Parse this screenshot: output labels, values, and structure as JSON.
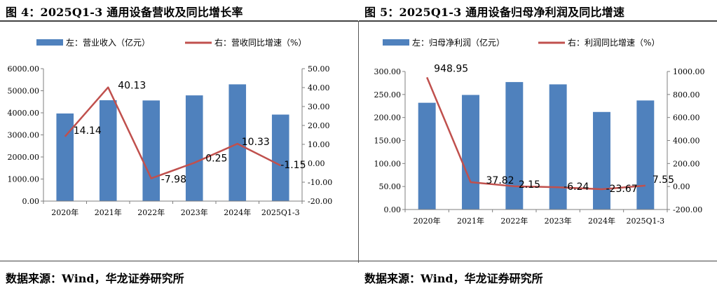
{
  "panels": [
    {
      "title": "图 4：2025Q1-3 通用设备营收及同比增长率",
      "source": "数据来源：Wind，华龙证券研究所",
      "chart_data": {
        "type": "bar+line",
        "categories": [
          "2020年",
          "2021年",
          "2022年",
          "2023年",
          "2024年",
          "2025Q1-3"
        ],
        "series": [
          {
            "name": "左：营业收入（亿元）",
            "type": "bar",
            "axis": "left",
            "color": "#4f81bd",
            "values": [
              3970,
              4570,
              4560,
              4790,
              5290,
              3920
            ]
          },
          {
            "name": "右：营收同比增速（%）",
            "type": "line",
            "axis": "right",
            "color": "#c0504d",
            "values": [
              14.14,
              40.13,
              -7.98,
              0.25,
              10.33,
              -1.15
            ],
            "labels": [
              "14.14",
              "40.13",
              "-7.98",
              "0.25",
              "10.33",
              "-1.15"
            ]
          }
        ],
        "left_axis": {
          "min": 0,
          "max": 6000,
          "step": 1000,
          "ticks": [
            "0.00",
            "1000.00",
            "2000.00",
            "3000.00",
            "4000.00",
            "5000.00",
            "6000.00"
          ]
        },
        "right_axis": {
          "min": -20,
          "max": 50,
          "step": 10,
          "ticks": [
            "-20.00",
            "-10.00",
            "0.00",
            "10.00",
            "20.00",
            "30.00",
            "40.00",
            "50.00"
          ]
        },
        "legend_position": "top"
      }
    },
    {
      "title": "图 5：2025Q1-3 通用设备归母净利润及同比增速",
      "source": "数据来源：Wind，华龙证券研究所",
      "chart_data": {
        "type": "bar+line",
        "categories": [
          "2020年",
          "2021年",
          "2022年",
          "2023年",
          "2024年",
          "2025Q1-3"
        ],
        "series": [
          {
            "name": "左：归母净利润（亿元）",
            "type": "bar",
            "axis": "left",
            "color": "#4f81bd",
            "values": [
              232,
              249,
              277,
              272,
              212,
              237
            ]
          },
          {
            "name": "右：利润同比增速（%）",
            "type": "line",
            "axis": "right",
            "color": "#c0504d",
            "values": [
              948.95,
              37.82,
              2.15,
              -6.24,
              -23.67,
              7.55
            ],
            "labels": [
              "948.95",
              "37.82",
              "2.15",
              "-6.24",
              "-23.67",
              "7.55"
            ]
          }
        ],
        "left_axis": {
          "min": 0,
          "max": 300,
          "step": 50,
          "ticks": [
            "0.00",
            "50.00",
            "100.00",
            "150.00",
            "200.00",
            "250.00",
            "300.00"
          ]
        },
        "right_axis": {
          "min": -200,
          "max": 1000,
          "step": 200,
          "ticks": [
            "-200.00",
            "0.00",
            "200.00",
            "400.00",
            "600.00",
            "800.00",
            "1000.00"
          ]
        },
        "legend_position": "top"
      }
    }
  ]
}
